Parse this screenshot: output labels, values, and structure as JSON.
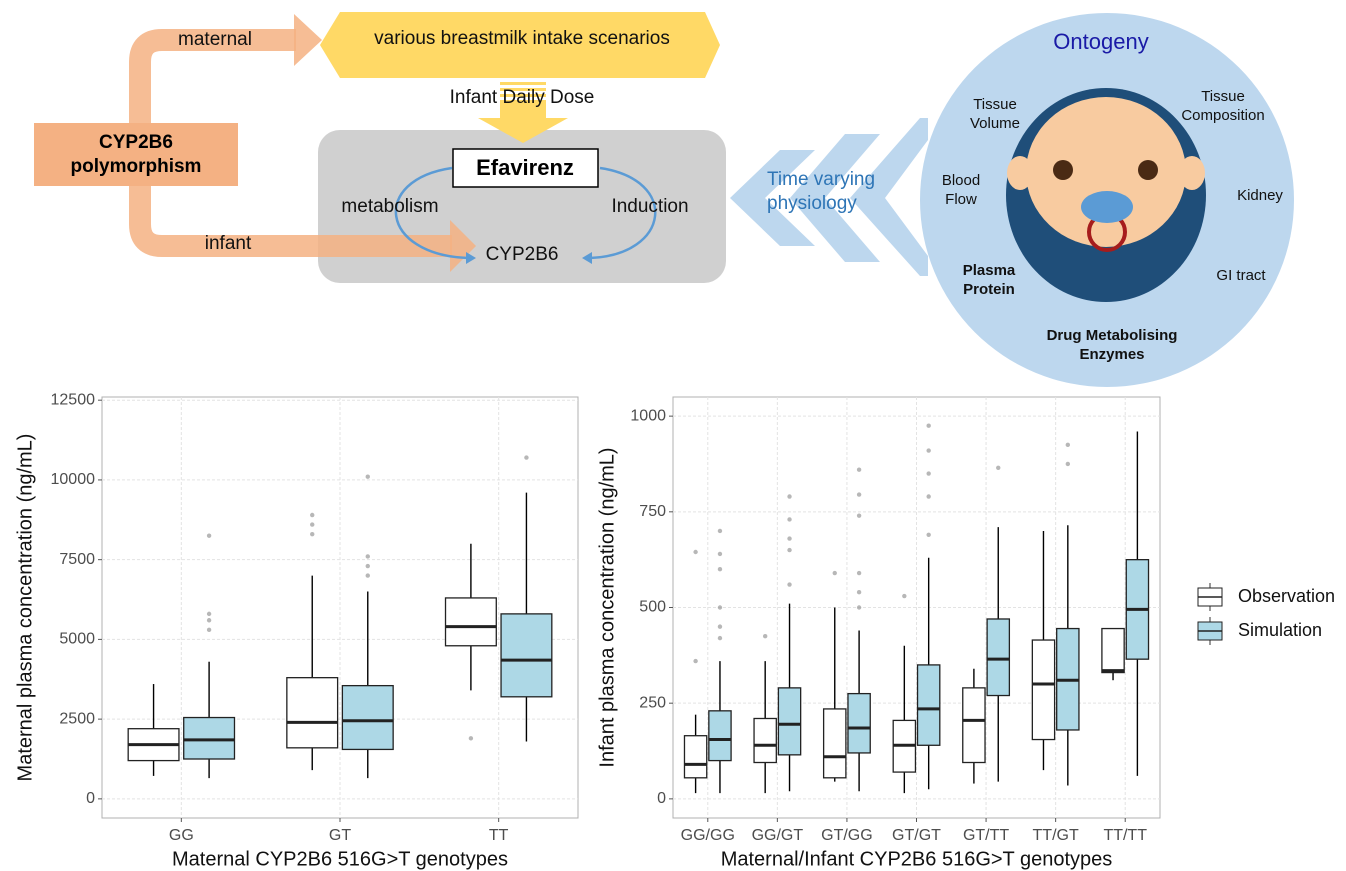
{
  "diagram": {
    "polymorphism": "CYP2B6 polymorphism",
    "maternal": "maternal",
    "infant": "infant",
    "scenarios": "various breastmilk intake scenarios",
    "dose": "Infant Daily Dose",
    "drug": "Efavirenz",
    "metabolism": "metabolism",
    "induction": "Induction",
    "enzyme": "CYP2B6",
    "physiology": "Time varying physiology",
    "ontogeny": {
      "title": "Ontogeny",
      "labels": [
        "Tissue Volume",
        "Tissue Composition",
        "Blood Flow",
        "Kidney",
        "Plasma Protein",
        "GI tract",
        "Drug Metabolising Enzymes"
      ]
    }
  },
  "chart_data": [
    {
      "type": "box",
      "y_label": "Maternal plasma concentration (ng/mL)",
      "x_label": "Maternal CYP2B6 516G>T genotypes",
      "categories": [
        "GG",
        "GT",
        "TT"
      ],
      "ylim": [
        -600,
        12600
      ],
      "yticks": [
        0,
        2500,
        5000,
        7500,
        10000,
        12500
      ],
      "grid": true,
      "series": [
        {
          "color": "#ffffff",
          "values": [
            [
              720,
              1200,
              1700,
              2200,
              3600
            ],
            [
              900,
              1600,
              2400,
              3800,
              7000
            ],
            [
              3400,
              4800,
              5400,
              6300,
              8000
            ]
          ],
          "outliers": [
            [],
            [
              8300,
              8600,
              8900
            ],
            [
              1900
            ]
          ]
        },
        {
          "color": "#add8e6",
          "values": [
            [
              650,
              1250,
              1850,
              2550,
              4300
            ],
            [
              650,
              1550,
              2450,
              3550,
              6500
            ],
            [
              1800,
              3200,
              4350,
              5800,
              9600
            ]
          ],
          "outliers": [
            [
              5300,
              5600,
              5800,
              8250
            ],
            [
              7000,
              7300,
              7600,
              10100
            ],
            [
              10700
            ]
          ]
        }
      ]
    },
    {
      "type": "box",
      "y_label": "Infant plasma concentration (ng/mL)",
      "x_label": "Maternal/Infant CYP2B6 516G>T genotypes",
      "categories": [
        "GG/GG",
        "GG/GT",
        "GT/GG",
        "GT/GT",
        "GT/TT",
        "TT/GT",
        "TT/TT"
      ],
      "ylim": [
        -50,
        1050
      ],
      "yticks": [
        0,
        250,
        500,
        750,
        1000
      ],
      "grid": true,
      "series": [
        {
          "name": "Observation",
          "color": "#ffffff",
          "values": [
            [
              15,
              55,
              90,
              165,
              220
            ],
            [
              15,
              95,
              140,
              210,
              360
            ],
            [
              45,
              55,
              110,
              235,
              500
            ],
            [
              15,
              70,
              140,
              205,
              400
            ],
            [
              40,
              95,
              205,
              290,
              340
            ],
            [
              75,
              155,
              300,
              415,
              700
            ],
            [
              310,
              330,
              335,
              445,
              445
            ]
          ],
          "outliers": [
            [
              360,
              645
            ],
            [
              425
            ],
            [
              590
            ],
            [
              530
            ],
            [],
            [],
            []
          ]
        },
        {
          "name": "Simulation",
          "color": "#add8e6",
          "values": [
            [
              15,
              100,
              155,
              230,
              360
            ],
            [
              20,
              115,
              195,
              290,
              510
            ],
            [
              20,
              120,
              185,
              275,
              440
            ],
            [
              25,
              140,
              235,
              350,
              630
            ],
            [
              45,
              270,
              365,
              470,
              710
            ],
            [
              35,
              180,
              310,
              445,
              715
            ],
            [
              60,
              365,
              495,
              625,
              960
            ]
          ],
          "outliers": [
            [
              420,
              450,
              500,
              600,
              640,
              700
            ],
            [
              560,
              650,
              680,
              730,
              790
            ],
            [
              500,
              540,
              590,
              740,
              795,
              860
            ],
            [
              690,
              790,
              850,
              910,
              975
            ],
            [
              865
            ],
            [
              875,
              925
            ],
            []
          ]
        }
      ]
    }
  ]
}
